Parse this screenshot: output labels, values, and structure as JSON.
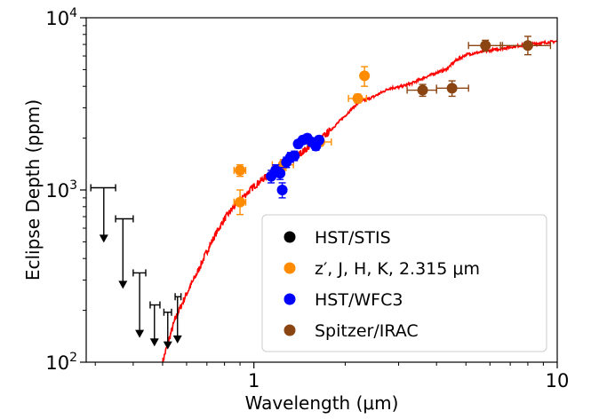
{
  "chart_data": {
    "type": "scatter",
    "xlabel": "Wavelength (μm)",
    "ylabel": "Eclipse Depth (ppm)",
    "x_scale": "log",
    "y_scale": "log",
    "xlim": [
      0.28,
      10
    ],
    "ylim": [
      100,
      10000
    ],
    "x_ticks": [
      {
        "value": 1,
        "label": "1"
      },
      {
        "value": 10,
        "label": "10"
      }
    ],
    "y_ticks": [
      {
        "value": 100,
        "base": "10",
        "exp": "2"
      },
      {
        "value": 1000,
        "base": "10",
        "exp": "3"
      },
      {
        "value": 10000,
        "base": "10",
        "exp": "4"
      }
    ],
    "legend": {
      "position": "lower-right",
      "entries": [
        {
          "label": "HST/STIS",
          "color": "#000000"
        },
        {
          "label": "z′, J, H, K, 2.315 μm",
          "color": "#ff8c00"
        },
        {
          "label": "HST/WFC3",
          "color": "#0000ff"
        },
        {
          "label": "Spitzer/IRAC",
          "color": "#8b4513"
        }
      ]
    },
    "model": {
      "color": "#ff0000",
      "points": [
        [
          0.5,
          100
        ],
        [
          0.52,
          128
        ],
        [
          0.55,
          178
        ],
        [
          0.6,
          250
        ],
        [
          0.65,
          330
        ],
        [
          0.7,
          440
        ],
        [
          0.75,
          560
        ],
        [
          0.8,
          680
        ],
        [
          0.85,
          780
        ],
        [
          0.9,
          880
        ],
        [
          0.95,
          960
        ],
        [
          1.0,
          1050
        ],
        [
          1.1,
          1200
        ],
        [
          1.2,
          1340
        ],
        [
          1.3,
          1450
        ],
        [
          1.4,
          1600
        ],
        [
          1.5,
          1750
        ],
        [
          1.6,
          1900
        ],
        [
          1.7,
          2050
        ],
        [
          1.8,
          2250
        ],
        [
          2.0,
          2700
        ],
        [
          2.2,
          3200
        ],
        [
          2.5,
          3500
        ],
        [
          2.8,
          3900
        ],
        [
          3.0,
          3950
        ],
        [
          3.3,
          4150
        ],
        [
          3.6,
          4450
        ],
        [
          4.0,
          4800
        ],
        [
          4.3,
          5000
        ],
        [
          4.6,
          5600
        ],
        [
          5.0,
          6100
        ],
        [
          6.0,
          6450
        ],
        [
          7.0,
          6750
        ],
        [
          8.0,
          7000
        ],
        [
          9.0,
          7150
        ],
        [
          10.0,
          7300
        ]
      ]
    },
    "series": [
      {
        "name": "HST/STIS",
        "color": "#000000",
        "upper_limits": [
          {
            "x": 0.32,
            "x_err": [
              0.03,
              0.03
            ],
            "y": 1030,
            "y_end": 500
          },
          {
            "x": 0.37,
            "x_err": [
              0.02,
              0.03
            ],
            "y": 680,
            "y_end": 270
          },
          {
            "x": 0.42,
            "x_err": [
              0.02,
              0.02
            ],
            "y": 330,
            "y_end": 140
          },
          {
            "x": 0.47,
            "x_err": [
              0.015,
              0.02
            ],
            "y": 215,
            "y_end": 125
          },
          {
            "x": 0.52,
            "x_err": [
              0.015,
              0.015
            ],
            "y": 195,
            "y_end": 120
          },
          {
            "x": 0.56,
            "x_err": [
              0.01,
              0.015
            ],
            "y": 240,
            "y_end": 130
          }
        ]
      },
      {
        "name": "z′, J, H, K, 2.315 μm",
        "color": "#ff8c00",
        "points": [
          {
            "x": 0.9,
            "y": 1300,
            "xerr": [
              0.04,
              0.04
            ],
            "yerr": [
              100,
              100
            ]
          },
          {
            "x": 0.9,
            "y": 850,
            "xerr": [
              0.04,
              0.04
            ],
            "yerr": [
              130,
              150
            ]
          },
          {
            "x": 1.25,
            "y": 1400,
            "xerr": [
              0.1,
              0.1
            ],
            "yerr": [
              100,
              100
            ]
          },
          {
            "x": 1.65,
            "y": 1900,
            "xerr": [
              0.15,
              0.15
            ],
            "yerr": [
              100,
              100
            ]
          },
          {
            "x": 2.2,
            "y": 3400,
            "xerr": [
              0.15,
              0.15
            ],
            "yerr": [
              200,
              200
            ]
          },
          {
            "x": 2.315,
            "y": 4600,
            "xerr": [
              0.04,
              0.04
            ],
            "yerr": [
              600,
              600
            ]
          }
        ]
      },
      {
        "name": "HST/WFC3",
        "color": "#0000ff",
        "points": [
          {
            "x": 1.14,
            "y": 1200,
            "yerr": [
              100,
              100
            ]
          },
          {
            "x": 1.18,
            "y": 1300,
            "yerr": [
              100,
              100
            ]
          },
          {
            "x": 1.22,
            "y": 1250,
            "yerr": [
              100,
              100
            ]
          },
          {
            "x": 1.24,
            "y": 1000,
            "yerr": [
              100,
              100
            ]
          },
          {
            "x": 1.28,
            "y": 1450,
            "yerr": [
              100,
              100
            ]
          },
          {
            "x": 1.32,
            "y": 1550,
            "yerr": [
              100,
              100
            ]
          },
          {
            "x": 1.36,
            "y": 1580,
            "yerr": [
              100,
              100
            ]
          },
          {
            "x": 1.4,
            "y": 1850,
            "yerr": [
              100,
              100
            ]
          },
          {
            "x": 1.45,
            "y": 1950,
            "yerr": [
              100,
              100
            ]
          },
          {
            "x": 1.5,
            "y": 2000,
            "yerr": [
              100,
              100
            ]
          },
          {
            "x": 1.55,
            "y": 1900,
            "yerr": [
              100,
              100
            ]
          },
          {
            "x": 1.6,
            "y": 1800,
            "yerr": [
              100,
              100
            ]
          },
          {
            "x": 1.64,
            "y": 1950,
            "yerr": [
              100,
              100
            ]
          }
        ]
      },
      {
        "name": "Spitzer/IRAC",
        "color": "#8b4513",
        "points": [
          {
            "x": 3.6,
            "y": 3800,
            "xerr": [
              0.4,
              0.4
            ],
            "yerr": [
              300,
              300
            ]
          },
          {
            "x": 4.5,
            "y": 3900,
            "xerr": [
              0.5,
              0.6
            ],
            "yerr": [
              400,
              400
            ]
          },
          {
            "x": 5.8,
            "y": 6900,
            "xerr": [
              0.7,
              0.8
            ],
            "yerr": [
              500,
              500
            ]
          },
          {
            "x": 8.0,
            "y": 6900,
            "xerr": [
              1.5,
              1.5
            ],
            "yerr": [
              800,
              900
            ]
          }
        ]
      }
    ]
  }
}
